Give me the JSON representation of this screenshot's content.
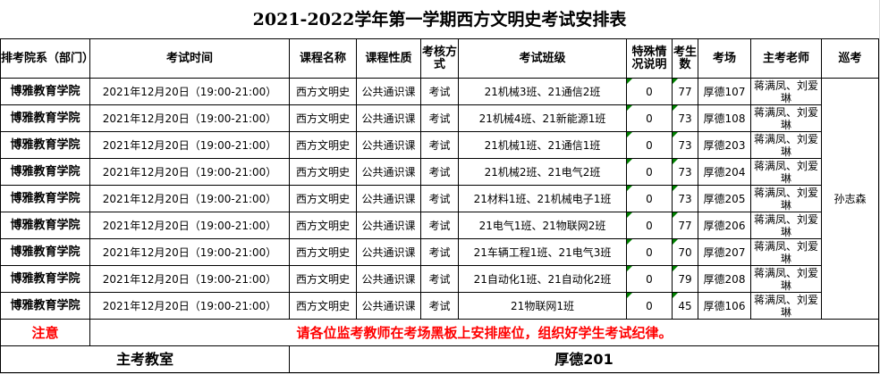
{
  "title": "2021-2022学年第一学期西方文明史考试安排表",
  "headers": [
    "排考院系（部门）",
    "考试时间",
    "课程名称",
    "课程性质",
    "考核方式",
    "考试班级",
    "特殊情况说明",
    "考生数",
    "考场",
    "主考老师",
    "巡考"
  ],
  "rows": [
    {
      "dept": "博雅教育学院",
      "time": "2021年12月20日（19:00-21:00）",
      "course": "西方文明史",
      "type": "公共通识课",
      "method": "考试",
      "classes": "21机械3班、21通信2班",
      "special": "0",
      "count": "77",
      "room": "厚德107",
      "teacher": "蒋满凤、刘爱琳"
    },
    {
      "dept": "博雅教育学院",
      "time": "2021年12月20日（19:00-21:00）",
      "course": "西方文明史",
      "type": "公共通识课",
      "method": "考试",
      "classes": "21机械4班、21新能源1班",
      "special": "0",
      "count": "73",
      "room": "厚德108",
      "teacher": "蒋满凤、刘爱琳"
    },
    {
      "dept": "博雅教育学院",
      "time": "2021年12月20日（19:00-21:00）",
      "course": "西方文明史",
      "type": "公共通识课",
      "method": "考试",
      "classes": "21机械1班、21通信1班",
      "special": "0",
      "count": "73",
      "room": "厚德203",
      "teacher": "蒋满凤、刘爱琳"
    },
    {
      "dept": "博雅教育学院",
      "time": "2021年12月20日（19:00-21:00）",
      "course": "西方文明史",
      "type": "公共通识课",
      "method": "考试",
      "classes": "21机械2班、21电气2班",
      "special": "0",
      "count": "73",
      "room": "厚德204",
      "teacher": "蒋满凤、刘爱琳"
    },
    {
      "dept": "博雅教育学院",
      "time": "2021年12月20日（19:00-21:00）",
      "course": "西方文明史",
      "type": "公共通识课",
      "method": "考试",
      "classes": "21材料1班、21机械电子1班",
      "special": "0",
      "count": "73",
      "room": "厚德205",
      "teacher": "蒋满凤、刘爱琳"
    },
    {
      "dept": "博雅教育学院",
      "time": "2021年12月20日（19:00-21:00）",
      "course": "西方文明史",
      "type": "公共通识课",
      "method": "考试",
      "classes": "21电气1班、21物联网2班",
      "special": "0",
      "count": "77",
      "room": "厚德206",
      "teacher": "蒋满凤、刘爱琳"
    },
    {
      "dept": "博雅教育学院",
      "time": "2021年12月20日（19:00-21:00）",
      "course": "西方文明史",
      "type": "公共通识课",
      "method": "考试",
      "classes": "21车辆工程1班、21电气3班",
      "special": "0",
      "count": "70",
      "room": "厚德207",
      "teacher": "蒋满凤、刘爱琳"
    },
    {
      "dept": "博雅教育学院",
      "time": "2021年12月20日（19:00-21:00）",
      "course": "西方文明史",
      "type": "公共通识课",
      "method": "考试",
      "classes": "21自动化1班、21自动化2班",
      "special": "0",
      "count": "79",
      "room": "厚德208",
      "teacher": "蒋满凤、刘爱琳"
    },
    {
      "dept": "博雅教育学院",
      "time": "2021年12月20日（19:00-21:00）",
      "course": "西方文明史",
      "type": "公共通识课",
      "method": "考试",
      "classes": "21物联网1班",
      "special": "0",
      "count": "45",
      "room": "厚德106",
      "teacher": "蒋满凤、刘爱琳"
    }
  ],
  "patrol": "孙志森",
  "note_label": "注意",
  "note_text": "请各位监考教师在考场黑板上安排座位，组织好学生考试纪律。",
  "main_room_label": "主考教室",
  "main_room": "厚德201",
  "colors": {
    "note": "#ff0000",
    "comment_marker": "#008000"
  }
}
